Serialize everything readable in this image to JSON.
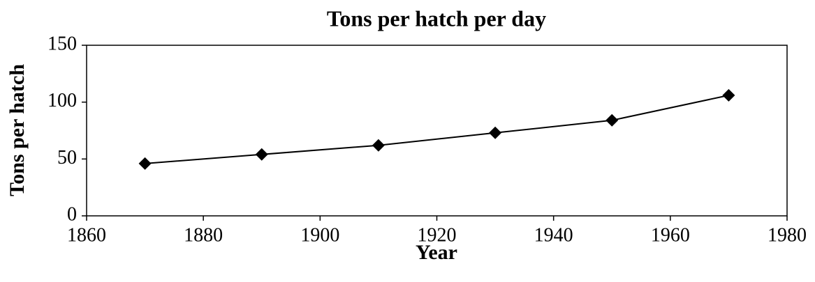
{
  "chart_data": {
    "type": "line",
    "title": "Tons per hatch per day",
    "xlabel": "Year",
    "ylabel": "Tons per hatch",
    "x": [
      1870,
      1890,
      1910,
      1930,
      1950,
      1970
    ],
    "series": [
      {
        "name": "Tons per hatch",
        "color": "#000000",
        "values": [
          46,
          54,
          62,
          73,
          84,
          106
        ]
      }
    ],
    "xlim": [
      1860,
      1980
    ],
    "xticks": [
      1860,
      1880,
      1900,
      1920,
      1940,
      1960,
      1980
    ],
    "ylim": [
      0,
      150
    ],
    "yticks": [
      0,
      50,
      100,
      150
    ],
    "grid": false,
    "marker": "diamond"
  }
}
